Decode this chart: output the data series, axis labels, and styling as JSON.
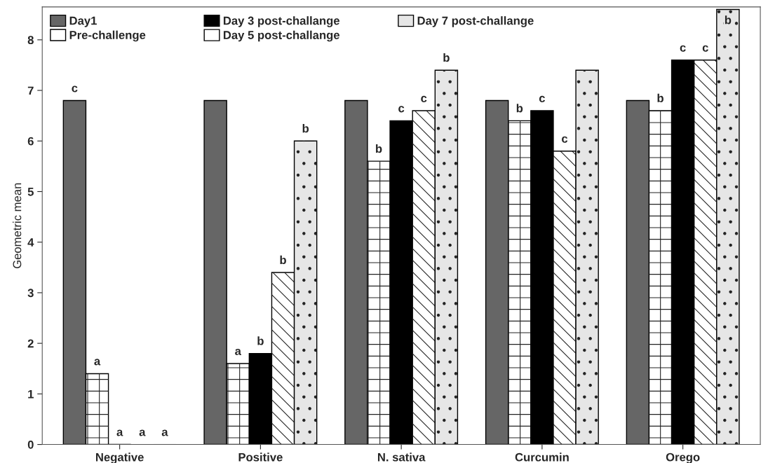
{
  "chart_data": {
    "type": "bar",
    "ylabel": "Geometric mean",
    "categories": [
      "Negative",
      "Positive",
      "N. sativa",
      "Curcumin",
      "Orego"
    ],
    "series": [
      {
        "name": "Day1",
        "color": "#666666",
        "values": [
          6.8,
          6.8,
          6.8,
          6.8,
          6.8
        ],
        "value_labels": [
          "c",
          null,
          null,
          null,
          null
        ]
      },
      {
        "name": "Pre-challenge",
        "color": "#ffffff",
        "values": [
          1.4,
          1.6,
          5.6,
          6.4,
          6.6
        ],
        "value_labels": [
          "a",
          "a",
          "b",
          "b",
          "b"
        ]
      },
      {
        "name": "Day 3 post-challange",
        "color": "#000000",
        "values": [
          0,
          1.8,
          6.4,
          6.6,
          7.6
        ],
        "value_labels": [
          "a",
          "b",
          "c",
          "c",
          "c"
        ]
      },
      {
        "name": "Day 5 post-challange",
        "color": "#ffffff",
        "values": [
          0,
          3.4,
          6.6,
          5.8,
          7.6
        ],
        "value_labels": [
          "a",
          "b",
          "c",
          "c",
          "c"
        ]
      },
      {
        "name": "Day 7 post-challange",
        "color": "#e6e6e6",
        "values": [
          0,
          6.0,
          7.4,
          7.4,
          8.6
        ],
        "value_labels": [
          "a",
          "b",
          "b",
          null,
          "b"
        ]
      }
    ],
    "ylim": [
      0,
      8.65
    ],
    "yticks": [
      0,
      1,
      2,
      3,
      4,
      5,
      6,
      7,
      8
    ],
    "grid": false,
    "legend": "top left"
  }
}
